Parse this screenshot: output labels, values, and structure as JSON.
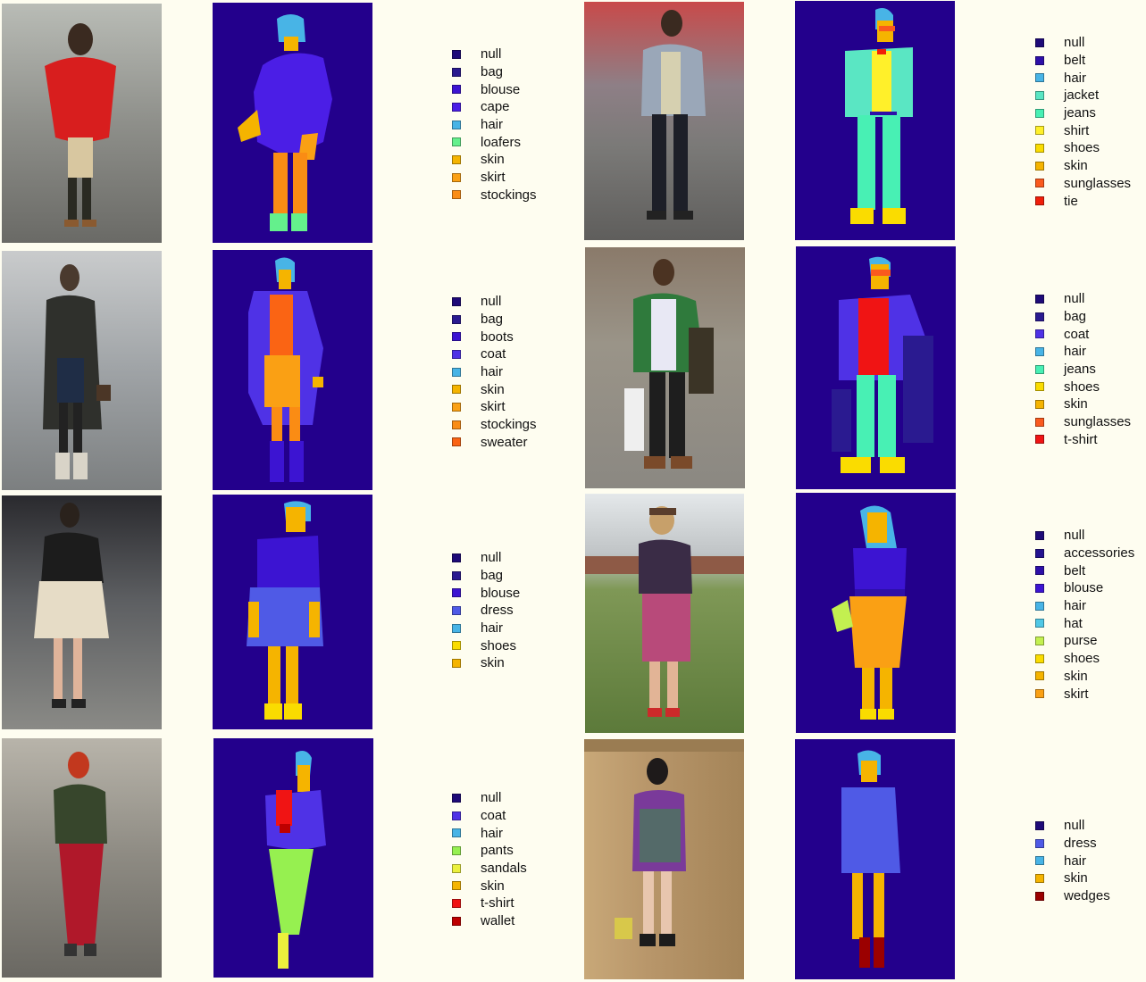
{
  "colors": {
    "background": "#fefdf0",
    "mask_background": "#23008c",
    "null": "#1e0a78",
    "accessories": "#241390",
    "bag": "#2a1a90",
    "belt": "#2d0fa8",
    "blouse": "#3c14d2",
    "cape": "#4b1ee6",
    "coat": "#4f32e6",
    "dress": "#4f5ae6",
    "hair": "#48b4e6",
    "hat": "#50c8e6",
    "jacket": "#5ae6c3",
    "jeans": "#48f0b4",
    "loafers": "#64f08c",
    "pants": "#96f050",
    "purse": "#c3f050",
    "sandals": "#ebf03c",
    "shirt": "#fff02a",
    "shoes": "#fadc00",
    "skin": "#f5b400",
    "skirt": "#faa014",
    "stockings": "#fa8c14",
    "sweater": "#fa6414",
    "sunglasses": "#fa5a1e",
    "t-shirt": "#f01414",
    "tie": "#f01e0a",
    "wallet": "#be0000",
    "wedges": "#9b0000"
  },
  "panels": [
    {
      "id": "p1",
      "legend": [
        "null",
        "bag",
        "blouse",
        "cape",
        "hair",
        "loafers",
        "skin",
        "skirt",
        "stockings"
      ]
    },
    {
      "id": "p2",
      "legend": [
        "null",
        "bag",
        "boots",
        "coat",
        "hair",
        "skin",
        "skirt",
        "stockings",
        "sweater"
      ]
    },
    {
      "id": "p3",
      "legend": [
        "null",
        "bag",
        "blouse",
        "dress",
        "hair",
        "shoes",
        "skin"
      ]
    },
    {
      "id": "p4",
      "legend": [
        "null",
        "coat",
        "hair",
        "pants",
        "sandals",
        "skin",
        "t-shirt",
        "wallet"
      ]
    },
    {
      "id": "p5",
      "legend": [
        "null",
        "belt",
        "hair",
        "jacket",
        "jeans",
        "shirt",
        "shoes",
        "skin",
        "sunglasses",
        "tie"
      ]
    },
    {
      "id": "p6",
      "legend": [
        "null",
        "bag",
        "coat",
        "hair",
        "jeans",
        "shoes",
        "skin",
        "sunglasses",
        "t-shirt"
      ]
    },
    {
      "id": "p7",
      "legend": [
        "null",
        "accessories",
        "belt",
        "blouse",
        "hair",
        "hat",
        "purse",
        "shoes",
        "skin",
        "skirt"
      ]
    },
    {
      "id": "p8",
      "legend": [
        "null",
        "dress",
        "hair",
        "skin",
        "wedges"
      ]
    }
  ]
}
